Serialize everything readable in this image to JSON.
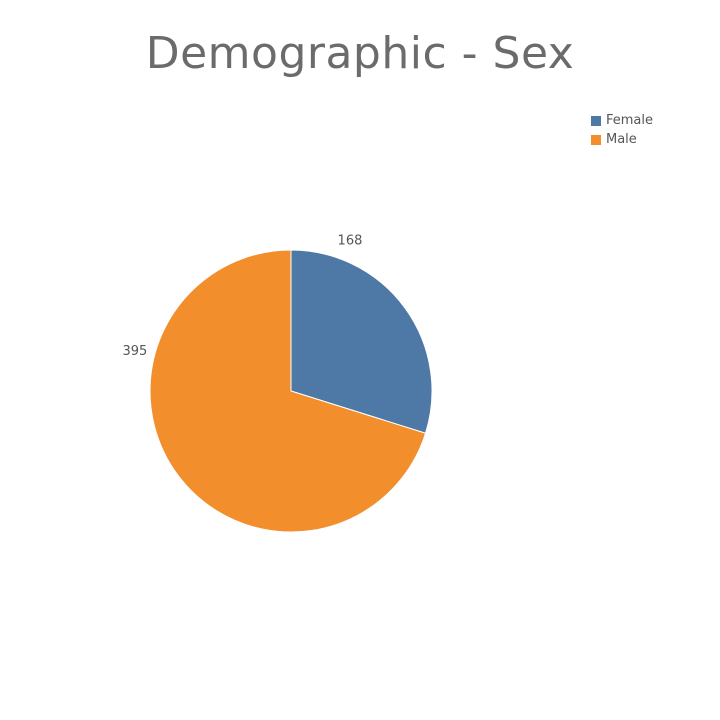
{
  "chart_data": {
    "type": "pie",
    "title": "Demographic - Sex",
    "categories": [
      "Female",
      "Male"
    ],
    "values": [
      168,
      395
    ],
    "colors": [
      "#4e79a7",
      "#f28e2b"
    ],
    "start_angle": "12 o'clock",
    "direction": "clockwise",
    "legend_position": "top-right",
    "data_labels": [
      "168",
      "395"
    ]
  }
}
